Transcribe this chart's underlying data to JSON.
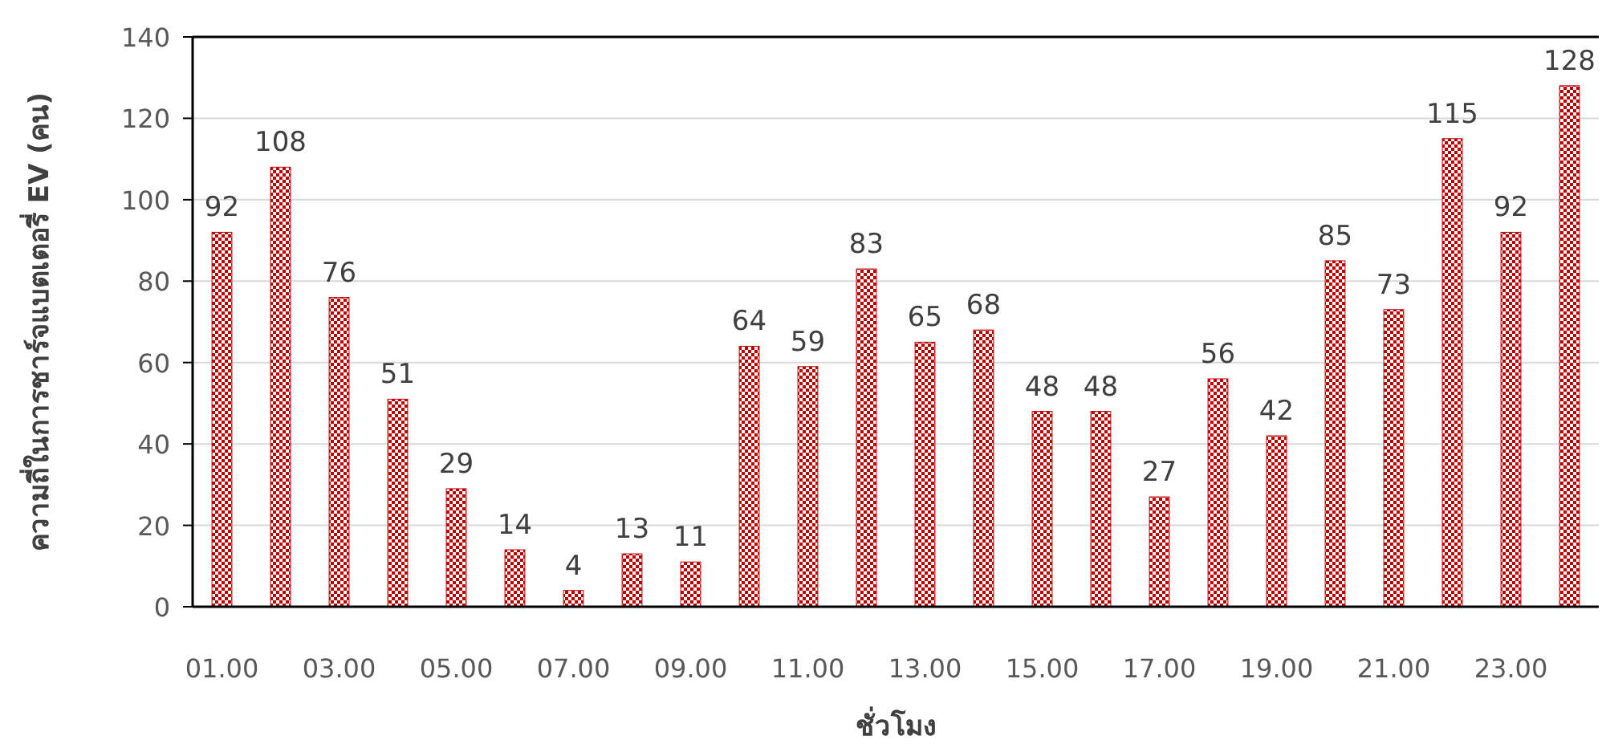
{
  "chart_data": {
    "type": "bar",
    "xlabel": "ชั่วโมง",
    "ylabel": "ความถี่ในการชาร์จแบตเตอรี่ EV (คน)",
    "categories": [
      "01.00",
      null,
      "03.00",
      null,
      "05.00",
      null,
      "07.00",
      null,
      "09.00",
      null,
      "11.00",
      null,
      "13.00",
      null,
      "15.00",
      null,
      "17.00",
      null,
      "19.00",
      null,
      "21.00",
      null,
      "23.00",
      null
    ],
    "values": [
      92,
      108,
      76,
      51,
      29,
      14,
      4,
      13,
      11,
      64,
      59,
      83,
      65,
      68,
      48,
      48,
      27,
      56,
      42,
      85,
      73,
      115,
      92,
      128
    ],
    "color": "#c00000",
    "ylim": [
      0,
      140
    ],
    "yticks": [
      0,
      20,
      40,
      60,
      80,
      100,
      120,
      140
    ],
    "grid": "y",
    "data_labels": true
  }
}
